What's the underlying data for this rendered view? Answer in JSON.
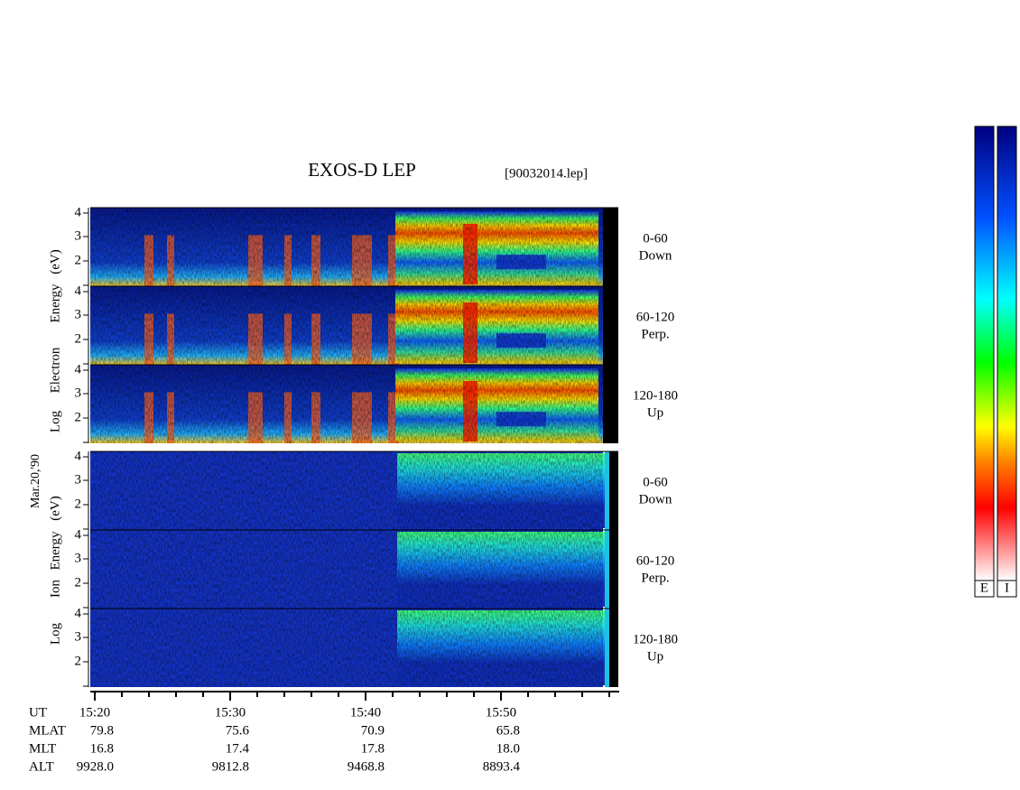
{
  "header": {
    "title": "EXOS-D LEP",
    "file": "[90032014.lep]"
  },
  "date": "Mar.20,'90",
  "electron_axis_label": [
    "Log",
    "Electron",
    "Energy",
    "(eV)"
  ],
  "ion_axis_label": [
    "Log",
    "Ion",
    "Energy",
    "(eV)"
  ],
  "panels": [
    {
      "ticks": [
        4,
        3,
        2
      ],
      "angle": "0-60",
      "direction": "Down"
    },
    {
      "ticks": [
        4,
        3,
        2
      ],
      "angle": "60-120",
      "direction": "Perp."
    },
    {
      "ticks": [
        4,
        3,
        2
      ],
      "angle": "120-180",
      "direction": "Up"
    },
    {
      "ticks": [
        4,
        3,
        2
      ],
      "angle": "0-60",
      "direction": "Down"
    },
    {
      "ticks": [
        4,
        3,
        2
      ],
      "angle": "60-120",
      "direction": "Perp."
    },
    {
      "ticks": [
        4,
        3,
        2
      ],
      "angle": "120-180",
      "direction": "Up"
    }
  ],
  "time_axis": {
    "rows": [
      {
        "label": "UT",
        "values": [
          "15:20",
          "15:30",
          "15:40",
          "15:50"
        ]
      },
      {
        "label": "MLAT",
        "values": [
          "79.8",
          "75.6",
          "70.9",
          "65.8"
        ]
      },
      {
        "label": "MLT",
        "values": [
          "16.8",
          "17.4",
          "17.8",
          "18.0"
        ]
      },
      {
        "label": "ALT",
        "values": [
          "9928.0",
          "9812.8",
          "9468.8",
          "8893.4"
        ]
      }
    ]
  },
  "colorbars": [
    "E",
    "I"
  ]
}
